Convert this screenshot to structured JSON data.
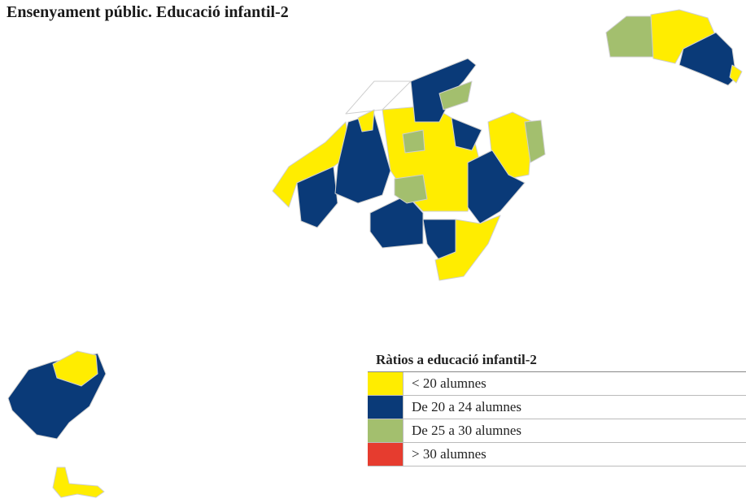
{
  "title": "Ensenyament públic. Educació infantil-2",
  "legend": {
    "title": "Ràtios a educació infantil-2",
    "items": [
      {
        "label": "< 20 alumnes",
        "color": "#ffed00"
      },
      {
        "label": "De 20 a 24 alumnes",
        "color": "#0a3a78"
      },
      {
        "label": "De 25 a 30 alumnes",
        "color": "#a3bf6e"
      },
      {
        "label": "> 30 alumnes",
        "color": "#e63c2f"
      }
    ]
  }
}
